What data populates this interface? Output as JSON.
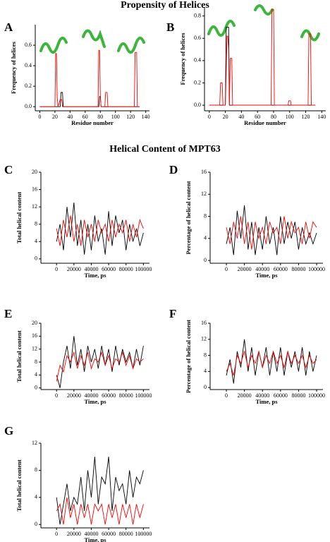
{
  "sections": [
    "Propensity of Helices",
    "Helical Content of MPT63"
  ],
  "chart_data": [
    {
      "type": "line",
      "label": "A",
      "xlabel": "Residue number",
      "ylabel": "Frequency of helices",
      "x": [
        0,
        20,
        21,
        22,
        23,
        24,
        27,
        28,
        29,
        30,
        31,
        77,
        78,
        79,
        80,
        81,
        86,
        87,
        88,
        89,
        90,
        125,
        126,
        127,
        128,
        129,
        132
      ],
      "series": [
        {
          "color": "#000000",
          "values": [
            0,
            0,
            0,
            0,
            0,
            0,
            0,
            0.14,
            0.14,
            0.14,
            0,
            0,
            0,
            0.1,
            0.1,
            0,
            0,
            0,
            0,
            0,
            0,
            0,
            0,
            0,
            0,
            0,
            0
          ]
        },
        {
          "color": "#ff0000",
          "values": [
            0,
            0,
            0.52,
            0.52,
            0.1,
            0,
            0.07,
            0.07,
            0.07,
            0,
            0,
            0,
            0.55,
            0.55,
            0.1,
            0,
            0,
            0.14,
            0.14,
            0.14,
            0,
            0,
            0.53,
            0.53,
            0.53,
            0,
            0
          ]
        }
      ],
      "xlim": [
        -6,
        145
      ],
      "ylim": [
        -0.04,
        0.8
      ],
      "xticks": [
        0,
        20,
        40,
        60,
        80,
        100,
        120,
        140
      ],
      "yticks": [
        {
          "value": 0,
          "label": "0.0"
        },
        0.2,
        0.4,
        0.6
      ]
    },
    {
      "type": "line",
      "label": "B",
      "xlabel": "Residue number",
      "ylabel": "Frequency of helices",
      "x": [
        0,
        13,
        14,
        15,
        16,
        17,
        20,
        21,
        22,
        23,
        24,
        25,
        26,
        27,
        28,
        29,
        77,
        78,
        79,
        80,
        81,
        98,
        99,
        100,
        101,
        102,
        123,
        124,
        125,
        126,
        127,
        132
      ],
      "series": [
        {
          "color": "#000000",
          "values": [
            0,
            0,
            0,
            0,
            0,
            0,
            0,
            0.7,
            0.7,
            0.7,
            0.7,
            0,
            0,
            0,
            0,
            0,
            0,
            0,
            0,
            0,
            0,
            0,
            0,
            0,
            0,
            0,
            0,
            0,
            0,
            0,
            0,
            0
          ]
        },
        {
          "color": "#ff0000",
          "values": [
            0,
            0,
            0.2,
            0.2,
            0.2,
            0,
            0,
            0.3,
            0.62,
            0.62,
            0.5,
            0,
            0.42,
            0.42,
            0.42,
            0,
            0,
            0.86,
            0.86,
            0.86,
            0,
            0,
            0.04,
            0.04,
            0.04,
            0,
            0,
            0.64,
            0.64,
            0.64,
            0,
            0
          ]
        }
      ],
      "xlim": [
        -6,
        145
      ],
      "ylim": [
        -0.05,
        0.88
      ],
      "xticks": [
        0,
        20,
        40,
        60,
        80,
        100,
        120,
        140
      ],
      "yticks": [
        {
          "value": 0,
          "label": "0.0"
        },
        0.2,
        0.4,
        0.6,
        0.8
      ]
    },
    {
      "type": "line",
      "label": "C",
      "xlabel": "Time, ps",
      "ylabel": "Total helical content",
      "x": [
        0,
        4000,
        8000,
        12000,
        16000,
        20000,
        24000,
        28000,
        32000,
        36000,
        40000,
        44000,
        48000,
        52000,
        56000,
        60000,
        64000,
        68000,
        72000,
        76000,
        80000,
        84000,
        88000,
        92000,
        96000,
        100000
      ],
      "series": [
        {
          "color": "#000000",
          "values": [
            4,
            8,
            2,
            12,
            5,
            13,
            3,
            9,
            1,
            8,
            2,
            10,
            4,
            7,
            1,
            11,
            3,
            10,
            6,
            9,
            2,
            8,
            4,
            7,
            3,
            6
          ]
        },
        {
          "color": "#ff0000",
          "values": [
            7,
            3,
            9,
            5,
            10,
            4,
            8,
            3,
            9,
            5,
            8,
            4,
            9,
            6,
            8,
            4,
            9,
            5,
            8,
            6,
            9,
            4,
            8,
            5,
            9,
            7
          ]
        }
      ],
      "xlim": [
        -18000,
        107000
      ],
      "ylim": [
        -1,
        20
      ],
      "xticks": [
        0,
        20000,
        40000,
        60000,
        80000,
        100000
      ],
      "yticks": [
        0,
        4,
        8,
        12,
        16,
        20
      ]
    },
    {
      "type": "line",
      "label": "D",
      "xlabel": "Time, ps",
      "ylabel": "Percentage of helical content",
      "x": [
        0,
        4000,
        8000,
        12000,
        16000,
        20000,
        24000,
        28000,
        32000,
        36000,
        40000,
        44000,
        48000,
        52000,
        56000,
        60000,
        64000,
        68000,
        72000,
        76000,
        80000,
        84000,
        88000,
        92000,
        96000,
        100000
      ],
      "series": [
        {
          "color": "#000000",
          "values": [
            3,
            6,
            1,
            9,
            4,
            10,
            2,
            7,
            1,
            6,
            2,
            8,
            3,
            6,
            1,
            8,
            3,
            7,
            4,
            7,
            2,
            6,
            3,
            5,
            3,
            5
          ]
        },
        {
          "color": "#ff0000",
          "values": [
            6,
            3,
            7,
            4,
            8,
            3,
            7,
            2,
            7,
            4,
            6,
            3,
            7,
            5,
            6,
            3,
            8,
            4,
            7,
            5,
            6,
            3,
            7,
            4,
            7,
            6
          ]
        }
      ],
      "xlim": [
        -18000,
        107000
      ],
      "ylim": [
        -0.5,
        16
      ],
      "xticks": [
        0,
        20000,
        40000,
        60000,
        80000,
        100000
      ],
      "yticks": [
        0,
        4,
        8,
        12,
        16
      ]
    },
    {
      "type": "line",
      "label": "E",
      "xlabel": "Time, ps",
      "ylabel": "Total helical content",
      "x": [
        0,
        4000,
        8000,
        12000,
        16000,
        20000,
        24000,
        28000,
        32000,
        36000,
        40000,
        44000,
        48000,
        52000,
        56000,
        60000,
        64000,
        68000,
        72000,
        76000,
        80000,
        84000,
        88000,
        92000,
        96000,
        100000
      ],
      "series": [
        {
          "color": "#000000",
          "values": [
            4,
            0,
            8,
            13,
            6,
            16,
            7,
            12,
            5,
            13,
            8,
            12,
            6,
            13,
            7,
            12,
            5,
            13,
            7,
            12,
            8,
            11,
            6,
            12,
            7,
            13
          ]
        },
        {
          "color": "#ff0000",
          "values": [
            2,
            7,
            5,
            10,
            8,
            11,
            6,
            10,
            7,
            11,
            6,
            9,
            8,
            11,
            7,
            10,
            6,
            9,
            8,
            11,
            7,
            10,
            6,
            9,
            8,
            9
          ]
        }
      ],
      "xlim": [
        -18000,
        107000
      ],
      "ylim": [
        -0.5,
        20
      ],
      "xticks": [
        0,
        20000,
        40000,
        60000,
        80000,
        100000
      ],
      "yticks": [
        0,
        4,
        8,
        12,
        16,
        20
      ]
    },
    {
      "type": "line",
      "label": "F",
      "xlabel": "Time, ps",
      "ylabel": "Percentage of helical content",
      "x": [
        0,
        4000,
        8000,
        12000,
        16000,
        20000,
        24000,
        28000,
        32000,
        36000,
        40000,
        44000,
        48000,
        52000,
        56000,
        60000,
        64000,
        68000,
        72000,
        76000,
        80000,
        84000,
        88000,
        92000,
        96000,
        100000
      ],
      "series": [
        {
          "color": "#000000",
          "values": [
            3,
            7,
            1,
            9,
            5,
            12,
            4,
            10,
            3,
            9,
            5,
            10,
            3,
            9,
            4,
            10,
            3,
            9,
            5,
            9,
            4,
            10,
            3,
            9,
            4,
            8
          ]
        },
        {
          "color": "#ff0000",
          "values": [
            4,
            6,
            3,
            8,
            6,
            9,
            5,
            8,
            6,
            9,
            5,
            8,
            6,
            9,
            6,
            8,
            5,
            9,
            6,
            8,
            6,
            8,
            5,
            8,
            6,
            7
          ]
        }
      ],
      "xlim": [
        -18000,
        107000
      ],
      "ylim": [
        -0.5,
        16
      ],
      "xticks": [
        0,
        20000,
        40000,
        60000,
        80000,
        100000
      ],
      "yticks": [
        0,
        4,
        8,
        12,
        16
      ]
    },
    {
      "type": "line",
      "label": "G",
      "xlabel": "Time, ps",
      "ylabel": "Total helical content",
      "x": [
        0,
        4000,
        8000,
        12000,
        16000,
        20000,
        24000,
        28000,
        32000,
        36000,
        40000,
        44000,
        48000,
        52000,
        56000,
        60000,
        64000,
        68000,
        72000,
        76000,
        80000,
        84000,
        88000,
        92000,
        96000,
        100000
      ],
      "series": [
        {
          "color": "#000000",
          "values": [
            4,
            0,
            3,
            6,
            2,
            4,
            3,
            7,
            2,
            8,
            4,
            10,
            3,
            7,
            6,
            10,
            2,
            7,
            5,
            6,
            3,
            8,
            4,
            7,
            6,
            8
          ]
        },
        {
          "color": "#ff0000",
          "values": [
            2,
            3,
            0,
            4,
            1,
            3,
            0,
            3,
            1,
            3,
            0,
            3,
            2,
            3,
            0,
            3,
            1,
            3,
            0,
            3,
            1,
            3,
            0,
            3,
            1,
            3
          ]
        }
      ],
      "xlim": [
        -18000,
        107000
      ],
      "ylim": [
        -0.5,
        12
      ],
      "xticks": [
        0,
        20000,
        40000,
        60000,
        80000,
        100000
      ],
      "yticks": [
        0,
        4,
        8,
        12
      ]
    }
  ]
}
